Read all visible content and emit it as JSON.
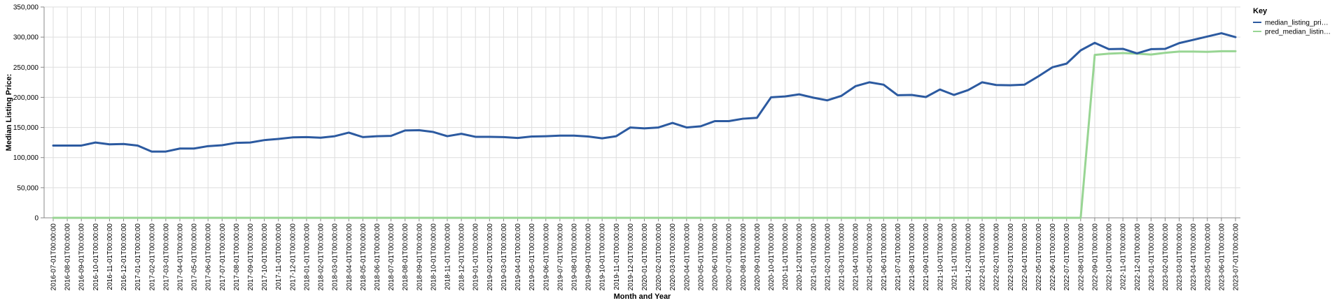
{
  "chart_data": {
    "type": "line",
    "title": "",
    "xlabel": "Month and Year",
    "ylabel": "Median Listing Price:",
    "ylim": [
      0,
      350000
    ],
    "y_ticks": [
      "0",
      "50,000",
      "100,000",
      "150,000",
      "200,000",
      "250,000",
      "300,000",
      "350,000"
    ],
    "grid": true,
    "legend": {
      "title": "Key",
      "placement": "top-right",
      "entries": [
        "median_listing_pri…",
        "pred_median_listin…"
      ]
    },
    "categories": [
      "2016-07-01T00:00:00",
      "2016-08-01T00:00:00",
      "2016-09-01T00:00:00",
      "2016-10-01T00:00:00",
      "2016-11-01T00:00:00",
      "2016-12-01T00:00:00",
      "2017-01-01T00:00:00",
      "2017-02-01T00:00:00",
      "2017-03-01T00:00:00",
      "2017-04-01T00:00:00",
      "2017-05-01T00:00:00",
      "2017-06-01T00:00:00",
      "2017-07-01T00:00:00",
      "2017-08-01T00:00:00",
      "2017-09-01T00:00:00",
      "2017-10-01T00:00:00",
      "2017-11-01T00:00:00",
      "2017-12-01T00:00:00",
      "2018-01-01T00:00:00",
      "2018-02-01T00:00:00",
      "2018-03-01T00:00:00",
      "2018-04-01T00:00:00",
      "2018-05-01T00:00:00",
      "2018-06-01T00:00:00",
      "2018-07-01T00:00:00",
      "2018-08-01T00:00:00",
      "2018-09-01T00:00:00",
      "2018-10-01T00:00:00",
      "2018-11-01T00:00:00",
      "2018-12-01T00:00:00",
      "2019-01-01T00:00:00",
      "2019-02-01T00:00:00",
      "2019-03-01T00:00:00",
      "2019-04-01T00:00:00",
      "2019-05-01T00:00:00",
      "2019-06-01T00:00:00",
      "2019-07-01T00:00:00",
      "2019-08-01T00:00:00",
      "2019-09-01T00:00:00",
      "2019-10-01T00:00:00",
      "2019-11-01T00:00:00",
      "2019-12-01T00:00:00",
      "2020-01-01T00:00:00",
      "2020-02-01T00:00:00",
      "2020-03-01T00:00:00",
      "2020-04-01T00:00:00",
      "2020-05-01T00:00:00",
      "2020-06-01T00:00:00",
      "2020-07-01T00:00:00",
      "2020-08-01T00:00:00",
      "2020-09-01T00:00:00",
      "2020-10-01T00:00:00",
      "2020-11-01T00:00:00",
      "2020-12-01T00:00:00",
      "2021-01-01T00:00:00",
      "2021-02-01T00:00:00",
      "2021-03-01T00:00:00",
      "2021-04-01T00:00:00",
      "2021-05-01T00:00:00",
      "2021-06-01T00:00:00",
      "2021-07-01T00:00:00",
      "2021-08-01T00:00:00",
      "2021-09-01T00:00:00",
      "2021-10-01T00:00:00",
      "2021-11-01T00:00:00",
      "2021-12-01T00:00:00",
      "2022-01-01T00:00:00",
      "2022-02-01T00:00:00",
      "2022-03-01T00:00:00",
      "2022-04-01T00:00:00",
      "2022-05-01T00:00:00",
      "2022-06-01T00:00:00",
      "2022-07-01T00:00:00",
      "2022-08-01T00:00:00",
      "2022-09-01T00:00:00",
      "2022-10-01T00:00:00",
      "2022-11-01T00:00:00",
      "2022-12-01T00:00:00",
      "2023-01-01T00:00:00",
      "2023-02-01T00:00:00",
      "2023-03-01T00:00:00",
      "2023-04-01T00:00:00",
      "2023-05-01T00:00:00",
      "2023-06-01T00:00:00",
      "2023-07-01T00:00:00"
    ],
    "series": [
      {
        "name": "median_listing_pri…",
        "color": "#2c5aa0",
        "values": [
          120000,
          120000,
          120000,
          125000,
          122000,
          122500,
          120000,
          110000,
          110000,
          115000,
          115000,
          119000,
          120500,
          124500,
          125000,
          129000,
          131000,
          133500,
          134000,
          133000,
          135500,
          141500,
          134000,
          135500,
          136000,
          145000,
          145500,
          142500,
          135500,
          139500,
          134500,
          134500,
          134000,
          132500,
          135000,
          135500,
          136500,
          136500,
          135000,
          132000,
          135500,
          150000,
          148500,
          150000,
          157500,
          150000,
          152000,
          160500,
          160500,
          164500,
          166000,
          200000,
          201500,
          205000,
          199500,
          195000,
          202500,
          218500,
          225000,
          221000,
          203500,
          204000,
          200500,
          213000,
          204000,
          212000,
          225000,
          220500,
          220000,
          221000,
          235000,
          250000,
          256000,
          278000,
          290500,
          280000,
          280500,
          273000,
          280000,
          280500,
          290000,
          295500,
          301000,
          306500,
          300000
        ]
      },
      {
        "name": "pred_median_listin…",
        "color": "#98d593",
        "values": [
          0,
          0,
          0,
          0,
          0,
          0,
          0,
          0,
          0,
          0,
          0,
          0,
          0,
          0,
          0,
          0,
          0,
          0,
          0,
          0,
          0,
          0,
          0,
          0,
          0,
          0,
          0,
          0,
          0,
          0,
          0,
          0,
          0,
          0,
          0,
          0,
          0,
          0,
          0,
          0,
          0,
          0,
          0,
          0,
          0,
          0,
          0,
          0,
          0,
          0,
          0,
          0,
          0,
          0,
          0,
          0,
          0,
          0,
          0,
          0,
          0,
          0,
          0,
          0,
          0,
          0,
          0,
          0,
          0,
          0,
          0,
          0,
          0,
          0,
          270500,
          272500,
          273500,
          272500,
          271000,
          274000,
          276000,
          276000,
          275500,
          276500,
          276500
        ]
      }
    ]
  }
}
